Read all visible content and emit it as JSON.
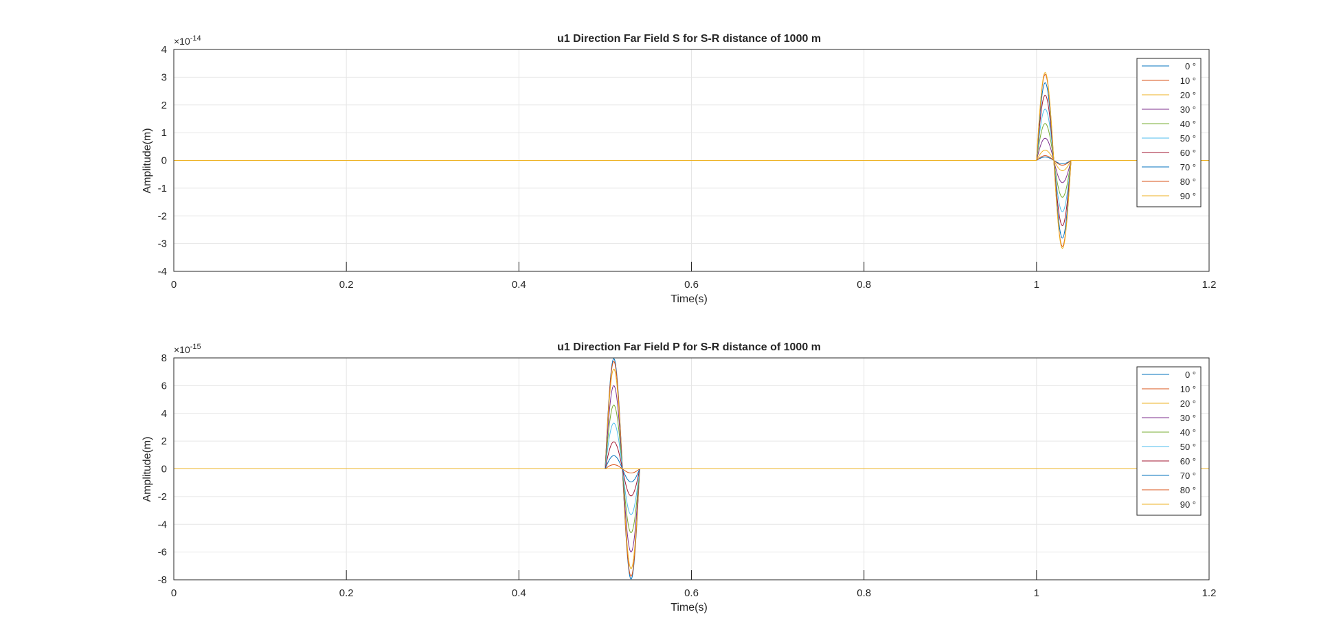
{
  "figure": {
    "background": "#ffffff",
    "axes_color": "#262626",
    "grid_color": "#e6e6e6",
    "series_colors": [
      "#0072BD",
      "#D95319",
      "#EDB120",
      "#7E2F8E",
      "#77AC30",
      "#4DBEEE",
      "#A2142F",
      "#0072BD",
      "#D95319",
      "#EDB120"
    ]
  },
  "chart_data": [
    {
      "type": "line",
      "title": "u1 Direction Far Field S for S-R distance of 1000 m",
      "xlabel": "Time(s)",
      "ylabel": "Amplitude(m)",
      "xlim": [
        0,
        1.2
      ],
      "ylim": [
        -4,
        4
      ],
      "y_exponent_label": "×10",
      "y_exponent_power": "-14",
      "xticks": [
        "0",
        "0.2",
        "0.4",
        "0.6",
        "0.8",
        "1",
        "1.2"
      ],
      "xtick_values": [
        0,
        0.2,
        0.4,
        0.6,
        0.8,
        1,
        1.2
      ],
      "yticks": [
        "-4",
        "-3",
        "-2",
        "-1",
        "0",
        "1",
        "2",
        "3",
        "4"
      ],
      "ytick_values": [
        -4,
        -3,
        -2,
        -1,
        0,
        1,
        2,
        3,
        4
      ],
      "grid": true,
      "legend_position": "top-right",
      "pulse": {
        "start": 1.0,
        "end": 1.04
      },
      "series": [
        {
          "name": "0 °",
          "amplitude": 0.12
        },
        {
          "name": "10 °",
          "amplitude": 0.17
        },
        {
          "name": "20 °",
          "amplitude": 0.37
        },
        {
          "name": "30 °",
          "amplitude": 0.8
        },
        {
          "name": "40 °",
          "amplitude": 1.33
        },
        {
          "name": "50 °",
          "amplitude": 1.85
        },
        {
          "name": "60 °",
          "amplitude": 2.35
        },
        {
          "name": "70 °",
          "amplitude": 2.8
        },
        {
          "name": "80 °",
          "amplitude": 3.1
        },
        {
          "name": "90 °",
          "amplitude": 3.17
        }
      ]
    },
    {
      "type": "line",
      "title": "u1 Direction Far Field P for S-R distance of 1000 m",
      "xlabel": "Time(s)",
      "ylabel": "Amplitude(m)",
      "xlim": [
        0,
        1.2
      ],
      "ylim": [
        -8,
        8
      ],
      "y_exponent_label": "×10",
      "y_exponent_power": "-15",
      "xticks": [
        "0",
        "0.2",
        "0.4",
        "0.6",
        "0.8",
        "1",
        "1.2"
      ],
      "xtick_values": [
        0,
        0.2,
        0.4,
        0.6,
        0.8,
        1,
        1.2
      ],
      "yticks": [
        "-8",
        "-6",
        "-4",
        "-2",
        "0",
        "2",
        "4",
        "6",
        "8"
      ],
      "ytick_values": [
        -8,
        -6,
        -4,
        -2,
        0,
        2,
        4,
        6,
        8
      ],
      "grid": true,
      "legend_position": "top-right",
      "pulse": {
        "start": 0.5,
        "end": 0.54
      },
      "series": [
        {
          "name": "0 °",
          "amplitude": 7.95
        },
        {
          "name": "10 °",
          "amplitude": 7.75
        },
        {
          "name": "20 °",
          "amplitude": 7.2
        },
        {
          "name": "30 °",
          "amplitude": 6.0
        },
        {
          "name": "40 °",
          "amplitude": 4.6
        },
        {
          "name": "50 °",
          "amplitude": 3.3
        },
        {
          "name": "60 °",
          "amplitude": 1.95
        },
        {
          "name": "70 °",
          "amplitude": 0.95
        },
        {
          "name": "80 °",
          "amplitude": 0.3
        },
        {
          "name": "90 °",
          "amplitude": 0.0
        }
      ]
    }
  ]
}
